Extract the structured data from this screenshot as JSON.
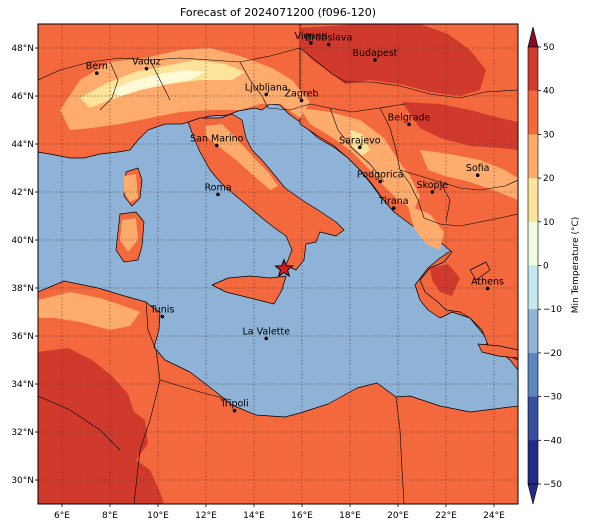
{
  "title": "Forecast of 2024071200 (f096-120)",
  "map_extent": {
    "lon_min": 5.0,
    "lon_max": 25.0,
    "lat_min": 29.0,
    "lat_max": 49.0
  },
  "lon_ticks": [
    {
      "value": 6,
      "label": "6°E"
    },
    {
      "value": 8,
      "label": "8°E"
    },
    {
      "value": 10,
      "label": "10°E"
    },
    {
      "value": 12,
      "label": "12°E"
    },
    {
      "value": 14,
      "label": "14°E"
    },
    {
      "value": 16,
      "label": "16°E"
    },
    {
      "value": 18,
      "label": "18°E"
    },
    {
      "value": 20,
      "label": "20°E"
    },
    {
      "value": 22,
      "label": "22°E"
    },
    {
      "value": 24,
      "label": "24°E"
    }
  ],
  "lat_ticks": [
    {
      "value": 30,
      "label": "30°N"
    },
    {
      "value": 32,
      "label": "32°N"
    },
    {
      "value": 34,
      "label": "34°N"
    },
    {
      "value": 36,
      "label": "36°N"
    },
    {
      "value": 38,
      "label": "38°N"
    },
    {
      "value": 40,
      "label": "40°N"
    },
    {
      "value": 42,
      "label": "42°N"
    },
    {
      "value": 44,
      "label": "44°N"
    },
    {
      "value": 46,
      "label": "46°N"
    },
    {
      "value": 48,
      "label": "48°N"
    }
  ],
  "cities": [
    {
      "name": "Bern",
      "lon": 7.45,
      "lat": 46.95
    },
    {
      "name": "Vaduz",
      "lon": 9.52,
      "lat": 47.14
    },
    {
      "name": "Vienna",
      "lon": 16.37,
      "lat": 48.21
    },
    {
      "name": "Bratislava",
      "lon": 17.11,
      "lat": 48.15
    },
    {
      "name": "Budapest",
      "lon": 19.04,
      "lat": 47.5
    },
    {
      "name": "Ljubljana",
      "lon": 14.51,
      "lat": 46.06
    },
    {
      "name": "Zagreb",
      "lon": 15.98,
      "lat": 45.81
    },
    {
      "name": "Belgrade",
      "lon": 20.46,
      "lat": 44.82
    },
    {
      "name": "San Marino",
      "lon": 12.45,
      "lat": 43.94
    },
    {
      "name": "Sarajevo",
      "lon": 18.41,
      "lat": 43.86
    },
    {
      "name": "Sofia",
      "lon": 23.32,
      "lat": 42.7
    },
    {
      "name": "Podgorica",
      "lon": 19.26,
      "lat": 42.44
    },
    {
      "name": "Skopje",
      "lon": 21.43,
      "lat": 42.0
    },
    {
      "name": "Roma",
      "lon": 12.5,
      "lat": 41.9
    },
    {
      "name": "Tirana",
      "lon": 19.82,
      "lat": 41.33
    },
    {
      "name": "Athens",
      "lon": 23.73,
      "lat": 37.98
    },
    {
      "name": "Tunis",
      "lon": 10.18,
      "lat": 36.81
    },
    {
      "name": "La Valette",
      "lon": 14.51,
      "lat": 35.9
    },
    {
      "name": "Tripoli",
      "lon": 13.19,
      "lat": 32.89
    }
  ],
  "marker": {
    "lon": 15.25,
    "lat": 38.8,
    "color": "#d7191c"
  },
  "colorbar": {
    "label": "Min Temperature (°C)",
    "ticks": [
      "50",
      "40",
      "30",
      "20",
      "10",
      "0",
      "−10",
      "−20",
      "−30",
      "−40",
      "−50"
    ],
    "colors_top_to_bottom": [
      "#8a0a27",
      "#d03a2c",
      "#f4683e",
      "#fdac6e",
      "#fee49a",
      "#f1fbe0",
      "#c7e7ef",
      "#8fb2d7",
      "#5b87be",
      "#3a4ea0",
      "#252a86"
    ]
  },
  "colors": {
    "sea": "#8fb2d7",
    "land_base": "#f4683e",
    "land_warm": "#d03a2c",
    "land_cool": "#fdac6e",
    "land_cooler": "#fee49a",
    "land_coolest": "#fffad6"
  }
}
